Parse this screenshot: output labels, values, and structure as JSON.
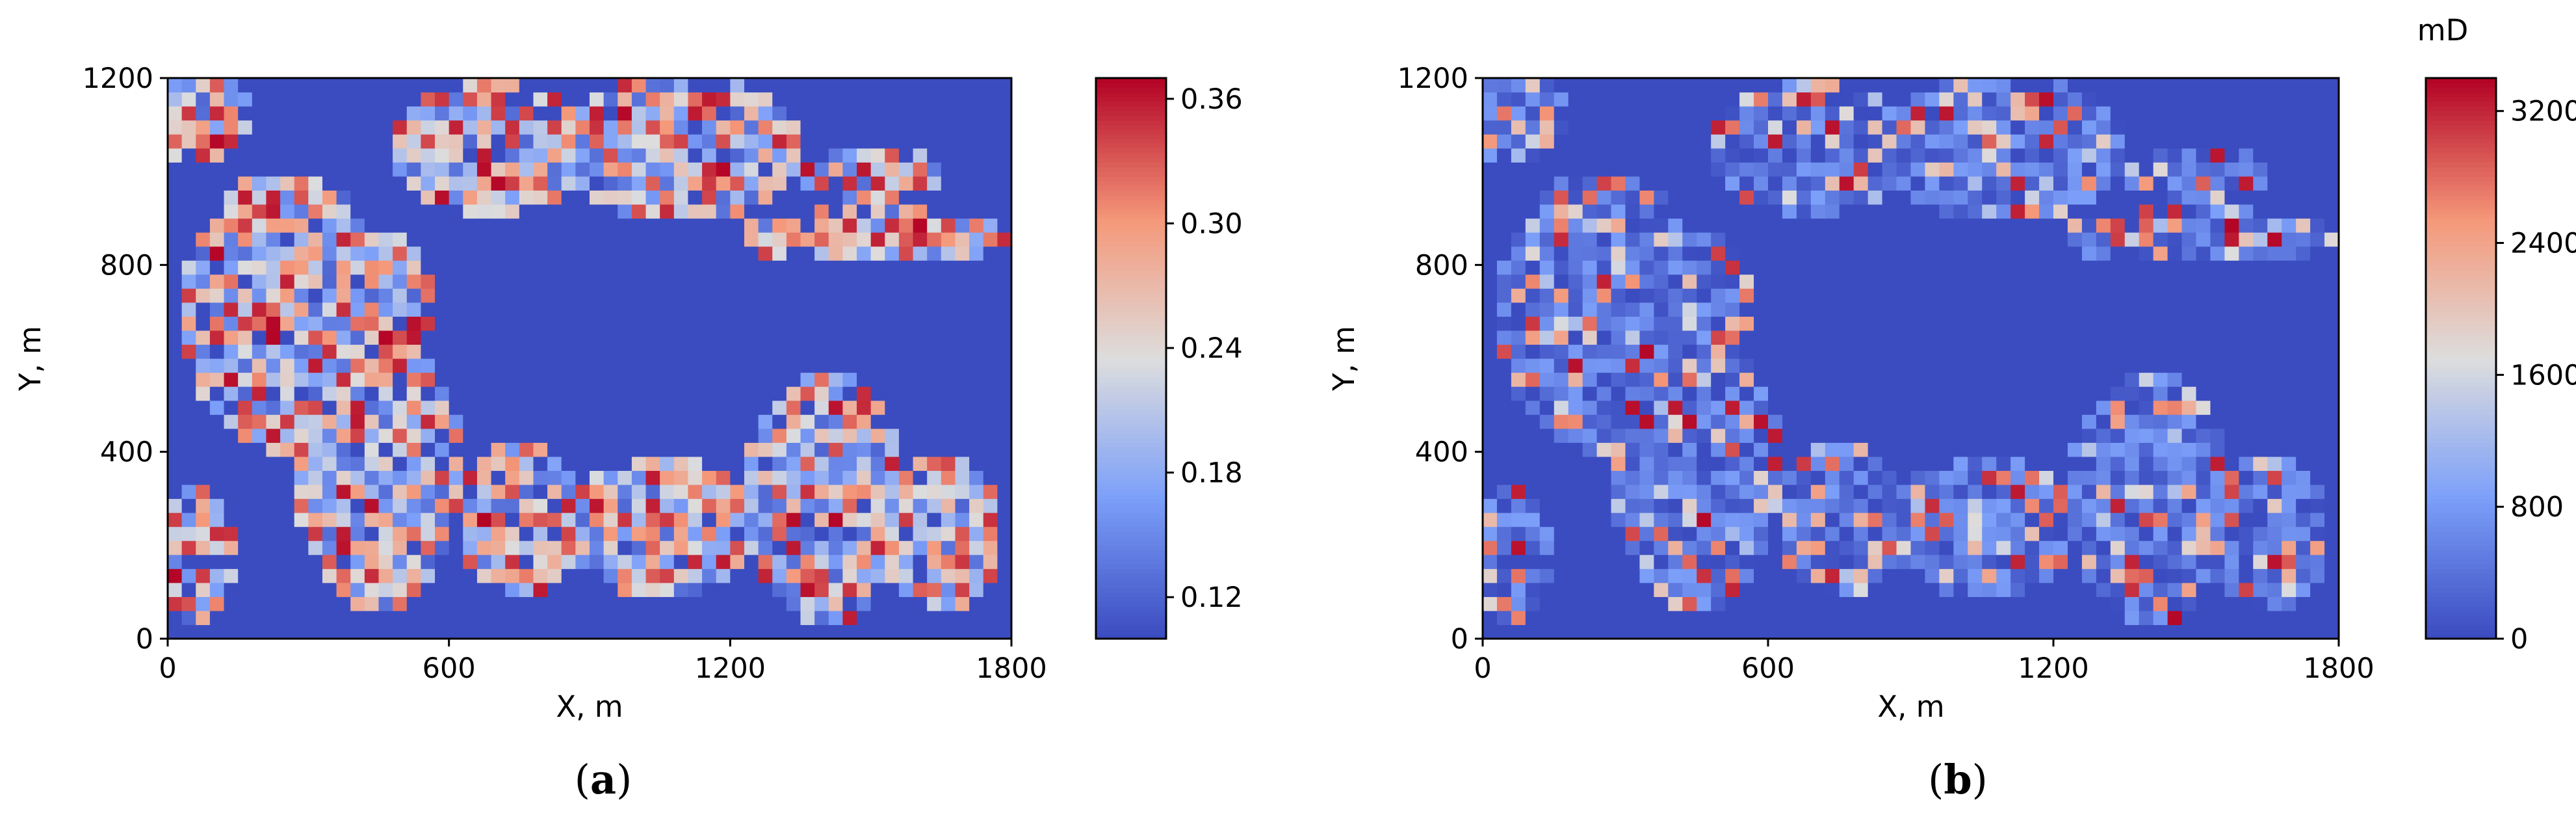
{
  "chart_data": [
    {
      "type": "heatmap",
      "panel_label": "a",
      "xlabel": "X, m",
      "ylabel": "Y, m",
      "xlim": [
        0,
        1800
      ],
      "ylim": [
        0,
        1200
      ],
      "xticks": [
        "0",
        "600",
        "1200",
        "1800"
      ],
      "yticks": [
        "0",
        "400",
        "800",
        "1200"
      ],
      "grid": {
        "nx": 60,
        "ny": 40
      },
      "colormap": "coolwarm",
      "colorbar": {
        "label": "",
        "range": [
          0.1,
          0.37
        ],
        "ticks": [
          "0.12",
          "0.18",
          "0.24",
          "0.30",
          "0.36"
        ]
      },
      "background_value": 0.1,
      "high_value_range": [
        0.12,
        0.37
      ],
      "high_value_regions_data_units": [
        {
          "center": [
            60,
            1130
          ],
          "radii": [
            120,
            110
          ]
        },
        {
          "center": [
            250,
            700
          ],
          "radii": [
            220,
            300
          ]
        },
        {
          "center": [
            450,
            350
          ],
          "radii": [
            180,
            300
          ]
        },
        {
          "center": [
            700,
            1050
          ],
          "radii": [
            230,
            140
          ]
        },
        {
          "center": [
            1100,
            1050
          ],
          "radii": [
            250,
            160
          ]
        },
        {
          "center": [
            1500,
            860
          ],
          "radii": [
            300,
            60
          ]
        },
        {
          "center": [
            1500,
            1000
          ],
          "radii": [
            160,
            60
          ]
        },
        {
          "center": [
            1400,
            300
          ],
          "radii": [
            170,
            270
          ]
        },
        {
          "center": [
            750,
            250
          ],
          "radii": [
            140,
            170
          ]
        },
        {
          "center": [
            1050,
            240
          ],
          "radii": [
            190,
            160
          ]
        },
        {
          "center": [
            1650,
            220
          ],
          "radii": [
            130,
            170
          ]
        },
        {
          "center": [
            60,
            180
          ],
          "radii": [
            80,
            150
          ]
        },
        {
          "center": [
            450,
            720
          ],
          "radii": [
            120,
            150
          ]
        }
      ]
    },
    {
      "type": "heatmap",
      "panel_label": "b",
      "xlabel": "X, m",
      "ylabel": "Y, m",
      "xlim": [
        0,
        1800
      ],
      "ylim": [
        0,
        1200
      ],
      "xticks": [
        "0",
        "600",
        "1200",
        "1800"
      ],
      "yticks": [
        "0",
        "400",
        "800",
        "1200"
      ],
      "grid": {
        "nx": 60,
        "ny": 40
      },
      "colormap": "coolwarm",
      "colorbar": {
        "label": "mD",
        "range": [
          0,
          3400
        ],
        "ticks": [
          "0",
          "800",
          "1600",
          "2400",
          "3200"
        ]
      },
      "background_value": 0,
      "high_value_range": [
        0,
        3400
      ]
    }
  ]
}
